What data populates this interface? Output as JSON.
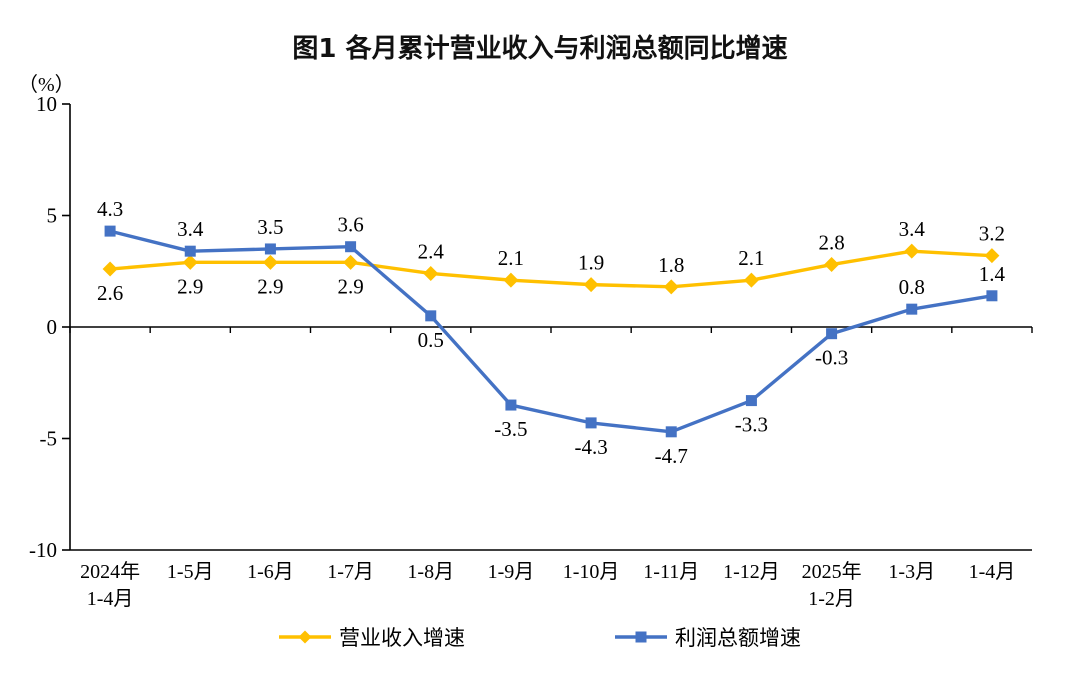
{
  "chart_data": {
    "type": "line",
    "title": "图1  各月累计营业收入与利润总额同比增速",
    "unit_label": "（%）",
    "categories": [
      "2024年\n1-4月",
      "1-5月",
      "1-6月",
      "1-7月",
      "1-8月",
      "1-9月",
      "1-10月",
      "1-11月",
      "1-12月",
      "2025年\n1-2月",
      "1-3月",
      "1-4月"
    ],
    "ylim": [
      -10,
      10
    ],
    "yticks": [
      10,
      5,
      0,
      -5,
      -10
    ],
    "grid": false,
    "legend_position": "bottom",
    "axis_color": "#000000",
    "series": [
      {
        "name": "营业收入增速",
        "color": "#FFC000",
        "marker": "diamond",
        "values": [
          2.6,
          2.9,
          2.9,
          2.9,
          2.4,
          2.1,
          1.9,
          1.8,
          2.1,
          2.8,
          3.4,
          3.2
        ],
        "label_pos": [
          "below",
          "below",
          "below",
          "below",
          "above",
          "above",
          "above",
          "above",
          "above",
          "above",
          "above",
          "above"
        ]
      },
      {
        "name": "利润总额增速",
        "color": "#4472C4",
        "marker": "square",
        "values": [
          4.3,
          3.4,
          3.5,
          3.6,
          0.5,
          -3.5,
          -4.3,
          -4.7,
          -3.3,
          -0.3,
          0.8,
          1.4
        ],
        "label_pos": [
          "above",
          "above",
          "above",
          "above",
          "below",
          "below",
          "below",
          "below",
          "below",
          "below",
          "above",
          "above"
        ]
      }
    ]
  }
}
